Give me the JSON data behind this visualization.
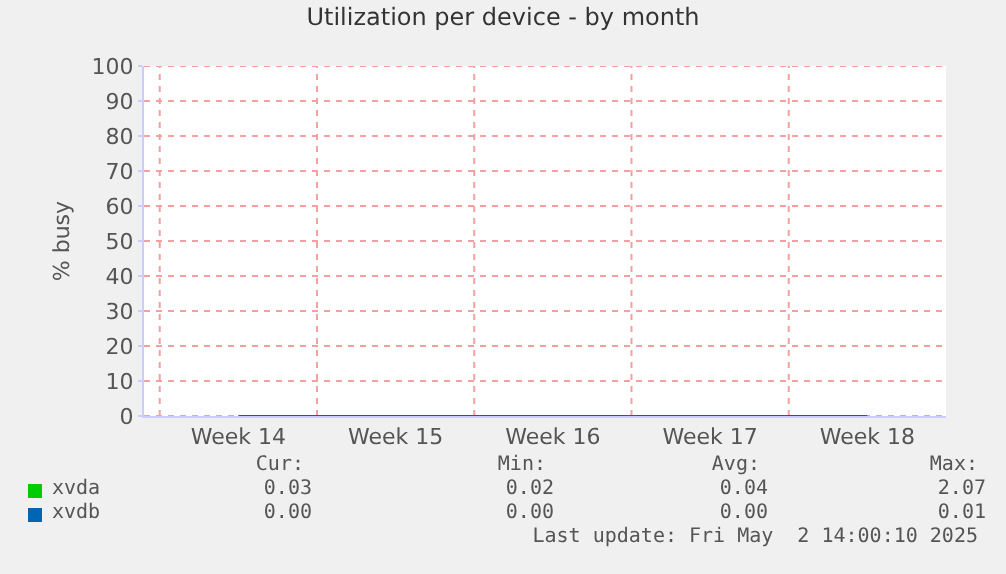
{
  "chart_data": {
    "type": "line",
    "title": "Utilization per device - by month",
    "ylabel": "% busy",
    "categories": [
      "Week 14",
      "Week 15",
      "Week 16",
      "Week 17",
      "Week 18"
    ],
    "series": [
      {
        "name": "xvda",
        "color": "#00cc00",
        "values": [
          null,
          null,
          null,
          null,
          null
        ]
      },
      {
        "name": "xvdb",
        "color": "#0066b3",
        "values": [
          0,
          0,
          0,
          0,
          0
        ]
      }
    ],
    "ylim": [
      0,
      100
    ],
    "yticks": [
      0,
      10,
      20,
      30,
      40,
      50,
      60,
      70,
      80,
      90,
      100
    ],
    "grid": true,
    "legend": "bottom",
    "annotations": [
      "Cur:",
      "Min:",
      "Avg:",
      "Max:",
      "0.03",
      "0.02",
      "0.04",
      "2.07",
      "0.00",
      "0.00",
      "0.00",
      "0.01",
      "Last update: Fri May  2 14:00:10 2025"
    ]
  }
}
